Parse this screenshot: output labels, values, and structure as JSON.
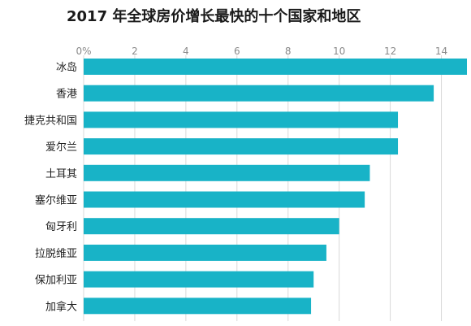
{
  "chart_data": {
    "type": "bar",
    "orientation": "horizontal",
    "title": "2017 年全球房价增长最快的十个国家和地区",
    "categories": [
      "冰岛",
      "香港",
      "捷克共和国",
      "爱尔兰",
      "土耳其",
      "塞尔维亚",
      "匈牙利",
      "拉脱维亚",
      "保加利亚",
      "加拿大"
    ],
    "values": [
      15.0,
      13.7,
      12.3,
      12.3,
      11.2,
      11.0,
      10.0,
      9.5,
      9.0,
      8.9
    ],
    "xlim": [
      0,
      15
    ],
    "x_ticks": [
      "0%",
      "2",
      "4",
      "6",
      "8",
      "10",
      "12",
      "14"
    ],
    "x_tick_values": [
      0,
      2,
      4,
      6,
      8,
      10,
      12,
      14
    ],
    "grid": true,
    "bar_color": "#18b3c7"
  }
}
